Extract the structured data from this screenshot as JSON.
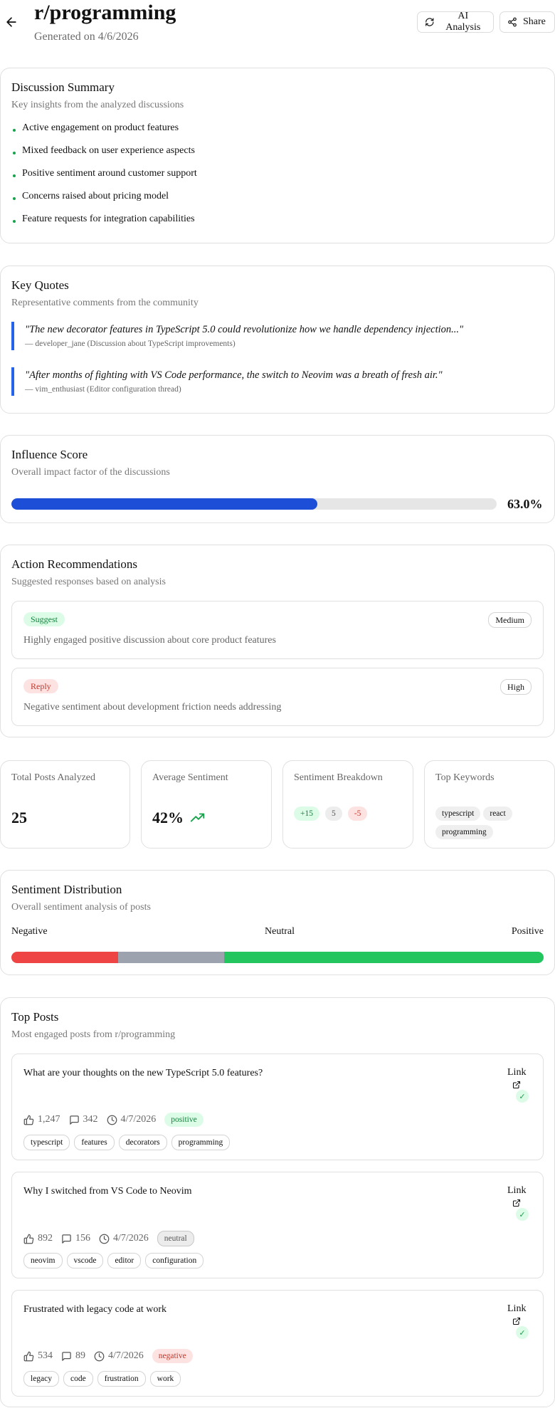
{
  "header": {
    "title": "r/programming",
    "subtitle": "Generated on 4/6/2026",
    "ai_button": "AI Analysis",
    "share_button": "Share"
  },
  "summary": {
    "title": "Discussion Summary",
    "subtitle": "Key insights from the analyzed discussions",
    "items": [
      "Active engagement on product features",
      "Mixed feedback on user experience aspects",
      "Positive sentiment around customer support",
      "Concerns raised about pricing model",
      "Feature requests for integration capabilities"
    ]
  },
  "quotes": {
    "title": "Key Quotes",
    "subtitle": "Representative comments from the community",
    "items": [
      {
        "text": "\"The new decorator features in TypeScript 5.0 could revolutionize how we handle dependency injection...\"",
        "attribution": "— developer_jane (Discussion about TypeScript improvements)"
      },
      {
        "text": "\"After months of fighting with VS Code performance, the switch to Neovim was a breath of fresh air.\"",
        "attribution": "— vim_enthusiast (Editor configuration thread)"
      }
    ]
  },
  "influence": {
    "title": "Influence Score",
    "subtitle": "Overall impact factor of the discussions",
    "value": 0.63,
    "value_label": "63.0%"
  },
  "recommendations": {
    "title": "Action Recommendations",
    "subtitle": "Suggested responses based on analysis",
    "items": [
      {
        "action": "Suggest",
        "priority": "Medium",
        "description": "Highly engaged positive discussion about core product features"
      },
      {
        "action": "Reply",
        "priority": "High",
        "description": "Negative sentiment about development friction needs addressing"
      }
    ]
  },
  "stats": {
    "total_posts": {
      "label": "Total Posts Analyzed",
      "value": "25"
    },
    "avg_sentiment": {
      "label": "Average Sentiment",
      "value": "42%"
    },
    "breakdown": {
      "label": "Sentiment Breakdown",
      "positive": "+15",
      "neutral": "5",
      "negative": "-5"
    },
    "keywords": {
      "label": "Top Keywords",
      "items": [
        "typescript",
        "react",
        "programming"
      ]
    }
  },
  "distribution": {
    "title": "Sentiment Distribution",
    "subtitle": "Overall sentiment analysis of posts",
    "label_negative": "Negative",
    "label_neutral": "Neutral",
    "label_positive": "Positive",
    "negative_count": 5,
    "neutral_count": 5,
    "positive_count": 15,
    "colors": {
      "negative": "#ef4444",
      "neutral": "#9ca3af",
      "positive": "#22c55e"
    }
  },
  "top_posts": {
    "title": "Top Posts",
    "subtitle": "Most engaged posts from r/programming",
    "link_label": "Link",
    "check_glyph": "✓",
    "items": [
      {
        "title": "What are your thoughts on the new TypeScript 5.0 features?",
        "upvotes": "1,247",
        "comments": "342",
        "date": "4/7/2026",
        "sentiment": "positive",
        "tags": [
          "typescript",
          "features",
          "decorators",
          "programming"
        ]
      },
      {
        "title": "Why I switched from VS Code to Neovim",
        "upvotes": "892",
        "comments": "156",
        "date": "4/7/2026",
        "sentiment": "neutral",
        "tags": [
          "neovim",
          "vscode",
          "editor",
          "configuration"
        ]
      },
      {
        "title": "Frustrated with legacy code at work",
        "upvotes": "534",
        "comments": "89",
        "date": "4/7/2026",
        "sentiment": "negative",
        "tags": [
          "legacy",
          "code",
          "frustration",
          "work"
        ]
      }
    ]
  }
}
